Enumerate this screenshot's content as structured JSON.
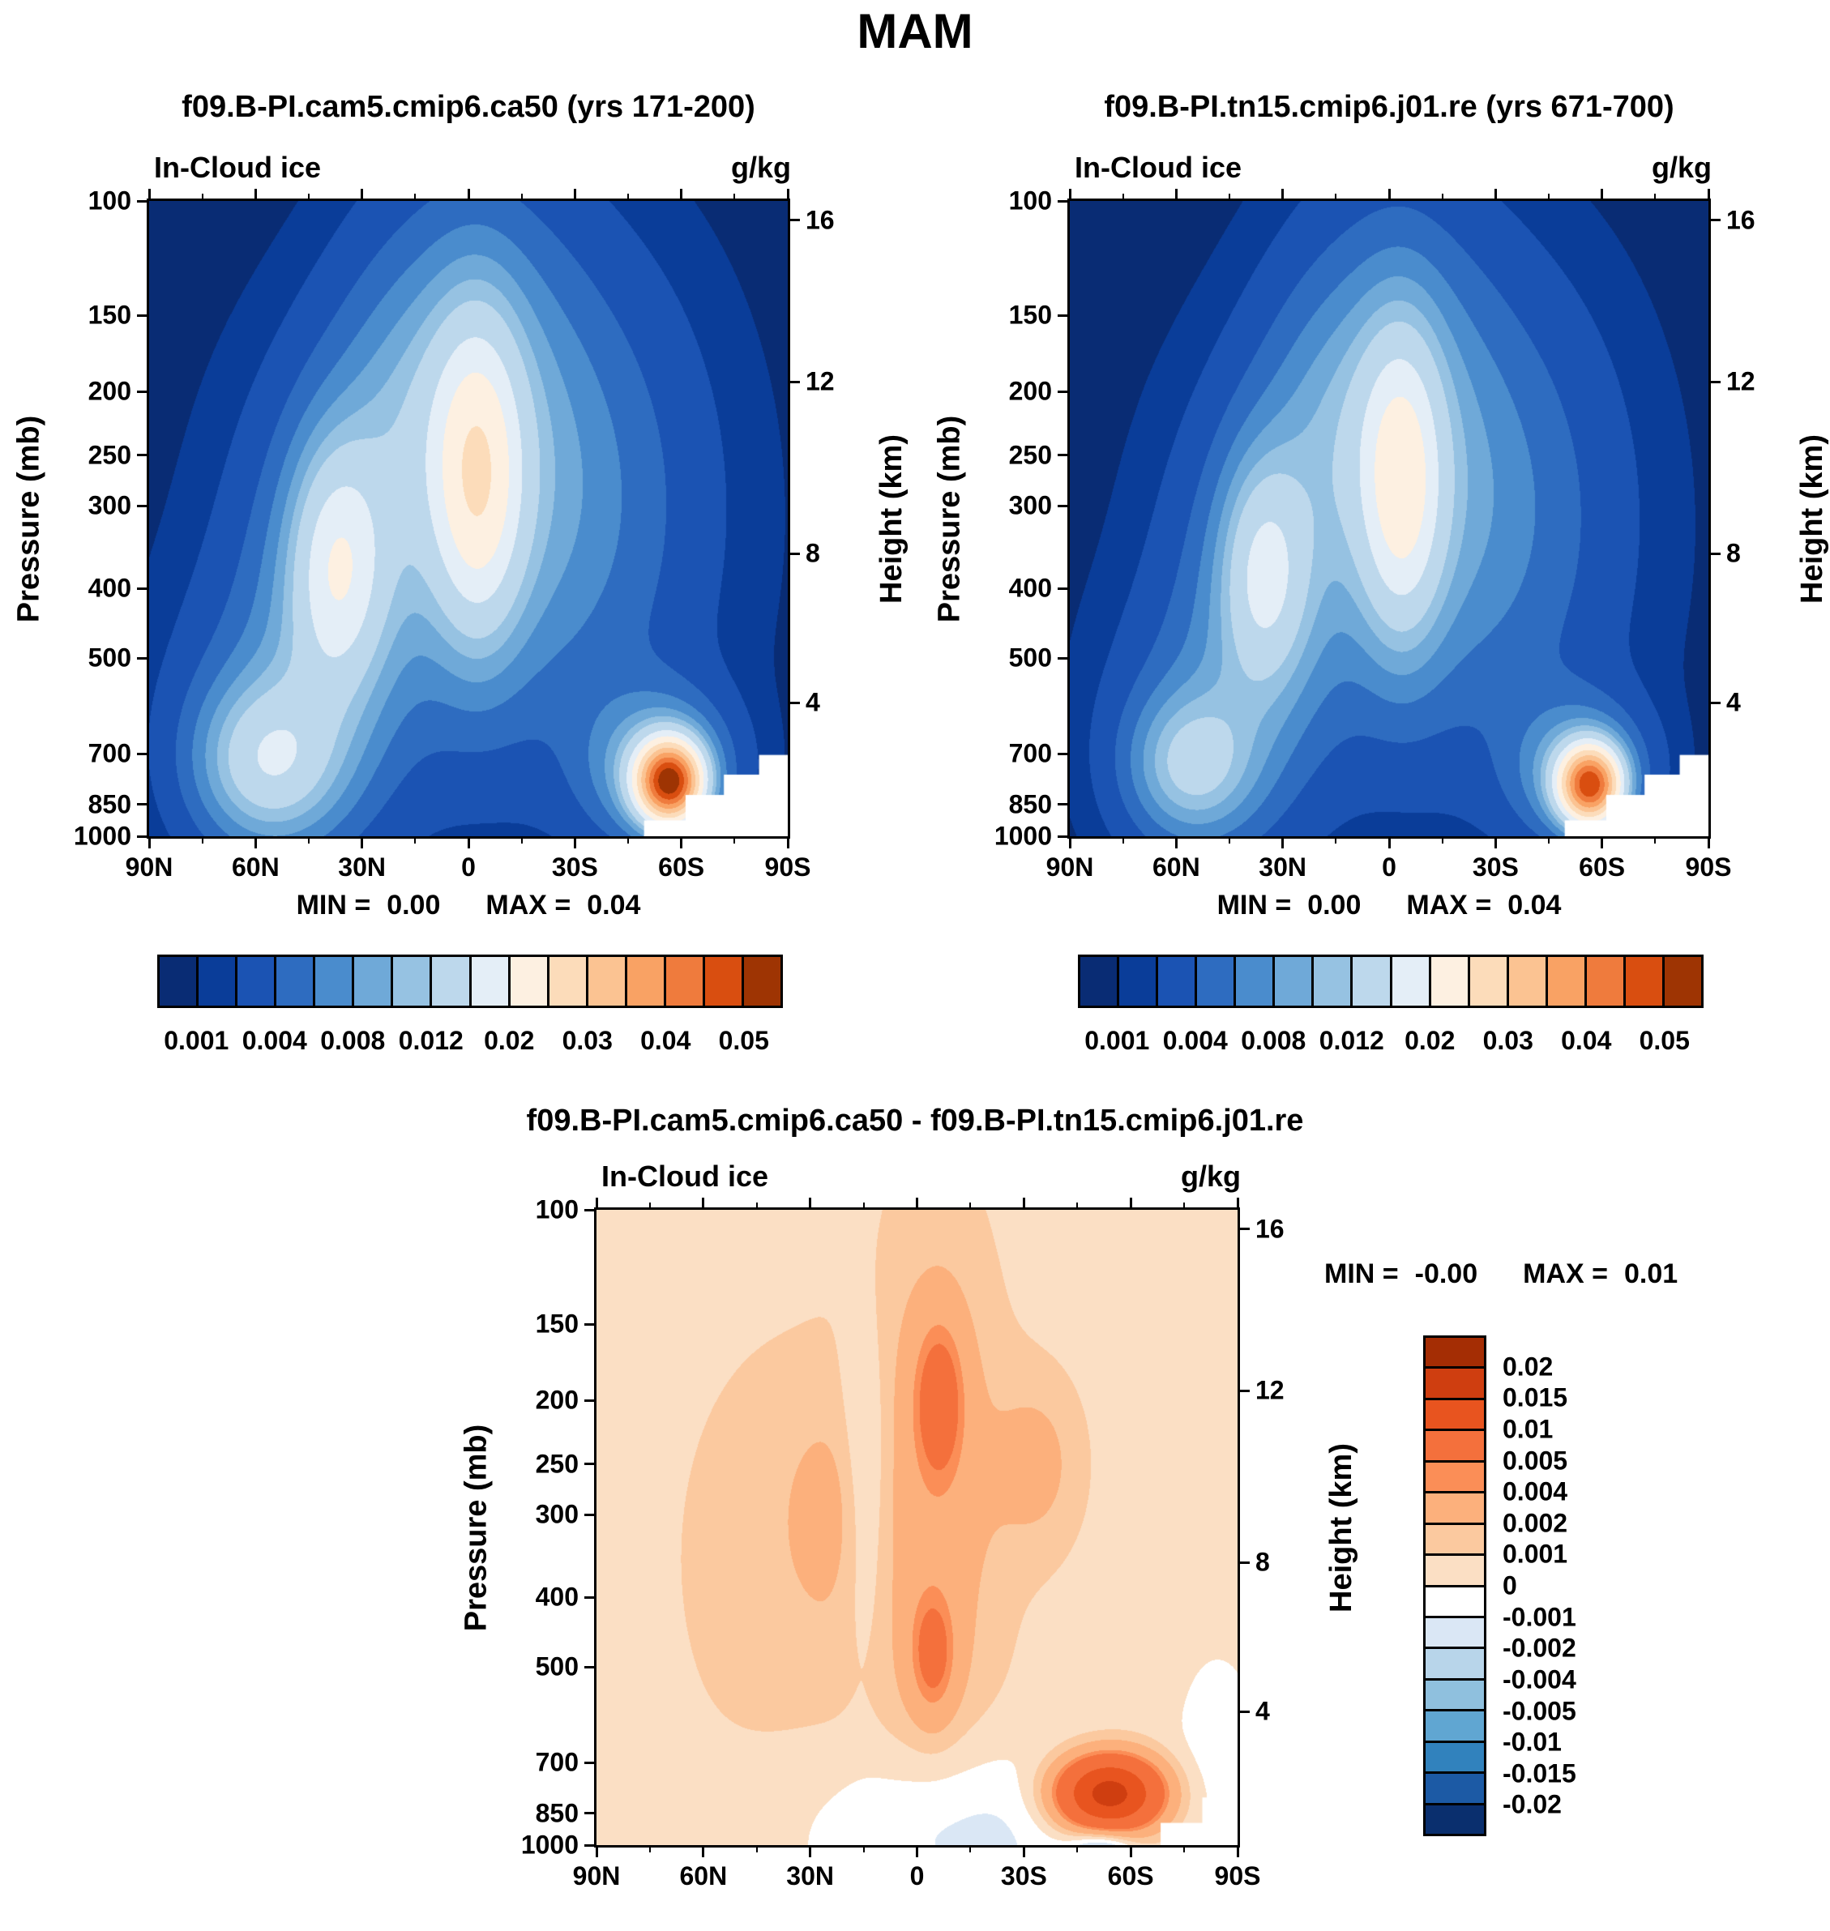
{
  "page_title": "MAM",
  "shared": {
    "pressure_axis_label": "Pressure (mb)",
    "height_axis_label": "Height (km)",
    "x_ticks": [
      [
        "90N",
        0
      ],
      [
        "60N",
        0.1667
      ],
      [
        "30N",
        0.3333
      ],
      [
        "0",
        0.5
      ],
      [
        "30S",
        0.6667
      ],
      [
        "60S",
        0.8333
      ],
      [
        "90S",
        1
      ]
    ],
    "pressure_ticks": [
      [
        "100",
        0
      ],
      [
        "150",
        0.18
      ],
      [
        "200",
        0.3
      ],
      [
        "250",
        0.4
      ],
      [
        "300",
        0.48
      ],
      [
        "400",
        0.61
      ],
      [
        "500",
        0.72
      ],
      [
        "700",
        0.87
      ],
      [
        "850",
        0.95
      ],
      [
        "1000",
        1
      ]
    ],
    "height_ticks": [
      [
        "16",
        0.03
      ],
      [
        "12",
        0.285
      ],
      [
        "8",
        0.555
      ],
      [
        "4",
        0.79
      ]
    ]
  },
  "chart_data": [
    {
      "type": "heatmap",
      "title": "f09.B-PI.cam5.cmip6.ca50 (yrs 171-200)",
      "field_label": "In-Cloud ice",
      "units": "g/kg",
      "min_label": "MIN =",
      "min_value": "0.00",
      "max_label": "MAX =",
      "max_value": "0.04",
      "x_axis": "latitude 90N to 90S",
      "y_axis": "pressure 100-1000 mb, secondary height axis 16/12/8/4 km",
      "levels": [
        0.001,
        0.002,
        0.004,
        0.006,
        0.008,
        0.01,
        0.012,
        0.016,
        0.02,
        0.025,
        0.03,
        0.035,
        0.04,
        0.045,
        0.05
      ],
      "colors": [
        "#092c74",
        "#0a3d99",
        "#1b53b3",
        "#2e6cc0",
        "#4a8ccd",
        "#6fa9d8",
        "#96c2e2",
        "#bdd8ec",
        "#e4eef7",
        "#fdf0e1",
        "#fcdcba",
        "#fbc392",
        "#f9a264",
        "#ef7b3d",
        "#d94e10",
        "#9e3403"
      ],
      "colorbar_labels": [
        [
          "0.001",
          1
        ],
        [
          "0.004",
          3
        ],
        [
          "0.008",
          5
        ],
        [
          "0.012",
          7
        ],
        [
          "0.02",
          9
        ],
        [
          "0.03",
          11
        ],
        [
          "0.04",
          13
        ],
        [
          "0.05",
          15
        ]
      ],
      "background": 0.0004,
      "features": [
        {
          "x": 0.5,
          "y": 0.36,
          "a": 0.0075,
          "sx": 0.115,
          "sy": 0.26
        },
        {
          "x": 0.515,
          "y": 0.44,
          "a": 0.014,
          "sx": 0.048,
          "sy": 0.17
        },
        {
          "x": 0.29,
          "y": 0.6,
          "a": 0.006,
          "sx": 0.1,
          "sy": 0.21
        },
        {
          "x": 0.295,
          "y": 0.575,
          "a": 0.011,
          "sx": 0.05,
          "sy": 0.13
        },
        {
          "x": 0.185,
          "y": 0.885,
          "a": 0.01,
          "sx": 0.075,
          "sy": 0.085
        },
        {
          "x": 0.2,
          "y": 0.84,
          "a": 0.0045,
          "sx": 0.115,
          "sy": 0.16
        },
        {
          "x": 0.815,
          "y": 0.915,
          "a": 0.044,
          "sx": 0.034,
          "sy": 0.042
        },
        {
          "x": 0.8,
          "y": 0.895,
          "a": 0.01,
          "sx": 0.075,
          "sy": 0.08
        },
        {
          "x": 0.67,
          "y": 0.48,
          "a": 0.0045,
          "sx": 0.14,
          "sy": 0.27
        },
        {
          "x": 0.4,
          "y": 0.33,
          "a": 0.003,
          "sx": 0.09,
          "sy": 0.16
        },
        {
          "x": 0.5,
          "y": 0.52,
          "a": 0.0012,
          "sx": 0.3,
          "sy": 0.34
        }
      ],
      "mask": [
        {
          "x0": 0.775,
          "x1": 1,
          "y0": 0.975,
          "y1": 1
        },
        {
          "x0": 0.84,
          "x1": 1,
          "y0": 0.935,
          "y1": 1
        },
        {
          "x0": 0.9,
          "x1": 1,
          "y0": 0.903,
          "y1": 1
        },
        {
          "x0": 0.955,
          "x1": 1,
          "y0": 0.872,
          "y1": 1
        }
      ]
    },
    {
      "type": "heatmap",
      "title": "f09.B-PI.tn15.cmip6.j01.re (yrs 671-700)",
      "field_label": "In-Cloud ice",
      "units": "g/kg",
      "min_label": "MIN =",
      "min_value": "0.00",
      "max_label": "MAX =",
      "max_value": "0.04",
      "x_axis": "latitude 90N to 90S",
      "y_axis": "pressure 100-1000 mb, secondary height axis 16/12/8/4 km",
      "levels": [
        0.001,
        0.002,
        0.004,
        0.006,
        0.008,
        0.01,
        0.012,
        0.016,
        0.02,
        0.025,
        0.03,
        0.035,
        0.04,
        0.045,
        0.05
      ],
      "colors": [
        "#092c74",
        "#0a3d99",
        "#1b53b3",
        "#2e6cc0",
        "#4a8ccd",
        "#6fa9d8",
        "#96c2e2",
        "#bdd8ec",
        "#e4eef7",
        "#fdf0e1",
        "#fcdcba",
        "#fbc392",
        "#f9a264",
        "#ef7b3d",
        "#d94e10",
        "#9e3403"
      ],
      "colorbar_labels": [
        [
          "0.001",
          1
        ],
        [
          "0.004",
          3
        ],
        [
          "0.008",
          5
        ],
        [
          "0.012",
          7
        ],
        [
          "0.02",
          9
        ],
        [
          "0.03",
          11
        ],
        [
          "0.04",
          13
        ],
        [
          "0.05",
          15
        ]
      ],
      "background": 0.0004,
      "features": [
        {
          "x": 0.5,
          "y": 0.37,
          "a": 0.007,
          "sx": 0.11,
          "sy": 0.25
        },
        {
          "x": 0.52,
          "y": 0.45,
          "a": 0.013,
          "sx": 0.044,
          "sy": 0.165
        },
        {
          "x": 0.3,
          "y": 0.62,
          "a": 0.0055,
          "sx": 0.095,
          "sy": 0.2
        },
        {
          "x": 0.305,
          "y": 0.585,
          "a": 0.0095,
          "sx": 0.046,
          "sy": 0.12
        },
        {
          "x": 0.19,
          "y": 0.89,
          "a": 0.0085,
          "sx": 0.065,
          "sy": 0.075
        },
        {
          "x": 0.205,
          "y": 0.85,
          "a": 0.004,
          "sx": 0.105,
          "sy": 0.15
        },
        {
          "x": 0.815,
          "y": 0.92,
          "a": 0.04,
          "sx": 0.032,
          "sy": 0.04
        },
        {
          "x": 0.8,
          "y": 0.9,
          "a": 0.009,
          "sx": 0.07,
          "sy": 0.075
        },
        {
          "x": 0.67,
          "y": 0.5,
          "a": 0.0045,
          "sx": 0.135,
          "sy": 0.26
        },
        {
          "x": 0.405,
          "y": 0.34,
          "a": 0.0028,
          "sx": 0.085,
          "sy": 0.15
        },
        {
          "x": 0.5,
          "y": 0.53,
          "a": 0.0011,
          "sx": 0.29,
          "sy": 0.33
        }
      ],
      "mask": [
        {
          "x0": 0.775,
          "x1": 1,
          "y0": 0.975,
          "y1": 1
        },
        {
          "x0": 0.84,
          "x1": 1,
          "y0": 0.935,
          "y1": 1
        },
        {
          "x0": 0.9,
          "x1": 1,
          "y0": 0.903,
          "y1": 1
        },
        {
          "x0": 0.955,
          "x1": 1,
          "y0": 0.872,
          "y1": 1
        }
      ]
    },
    {
      "type": "heatmap",
      "title": "f09.B-PI.cam5.cmip6.ca50 - f09.B-PI.tn15.cmip6.j01.re",
      "field_label": "In-Cloud ice",
      "units": "g/kg",
      "min_label": "MIN =",
      "min_value": "-0.00",
      "max_label": "MAX =",
      "max_value": "0.01",
      "x_axis": "latitude 90N to 90S",
      "y_axis": "pressure 100-1000 mb, secondary height axis 16/12/8/4 km",
      "levels": [
        -0.02,
        -0.015,
        -0.01,
        -0.005,
        -0.004,
        -0.002,
        -0.001,
        0,
        0.001,
        0.002,
        0.004,
        0.005,
        0.01,
        0.015,
        0.02
      ],
      "colors": [
        "#0a2f6e",
        "#1c5aa5",
        "#3182bd",
        "#60a6d2",
        "#8fc0de",
        "#b8d5ea",
        "#dae7f5",
        "#ffffff",
        "#fbdfc4",
        "#fbc99f",
        "#fcb07c",
        "#fb8e57",
        "#f4703c",
        "#e8541f",
        "#cf3e10",
        "#a42d04"
      ],
      "colorbar_labels": [
        [
          "0.02",
          1
        ],
        [
          "0.015",
          2
        ],
        [
          "0.01",
          3
        ],
        [
          "0.005",
          4
        ],
        [
          "0.004",
          5
        ],
        [
          "0.002",
          6
        ],
        [
          "0.001",
          7
        ],
        [
          "0",
          8
        ],
        [
          "-0.001",
          9
        ],
        [
          "-0.002",
          10
        ],
        [
          "-0.004",
          11
        ],
        [
          "-0.005",
          12
        ],
        [
          "-0.01",
          13
        ],
        [
          "-0.015",
          14
        ],
        [
          "-0.02",
          15
        ]
      ],
      "background": 0.0005,
      "features": [
        {
          "x": 0.53,
          "y": 0.45,
          "a": 0.002,
          "sx": 0.075,
          "sy": 0.33
        },
        {
          "x": 0.535,
          "y": 0.3,
          "a": 0.0045,
          "sx": 0.028,
          "sy": 0.09
        },
        {
          "x": 0.525,
          "y": 0.7,
          "a": 0.004,
          "sx": 0.025,
          "sy": 0.07
        },
        {
          "x": 0.32,
          "y": 0.55,
          "a": 0.001,
          "sx": 0.16,
          "sy": 0.3
        },
        {
          "x": 0.36,
          "y": 0.48,
          "a": 0.0013,
          "sx": 0.045,
          "sy": 0.1
        },
        {
          "x": 0.69,
          "y": 0.4,
          "a": 0.0018,
          "sx": 0.05,
          "sy": 0.1
        },
        {
          "x": 0.8,
          "y": 0.92,
          "a": 0.017,
          "sx": 0.055,
          "sy": 0.04
        },
        {
          "x": 0.55,
          "y": 0.98,
          "a": -0.0022,
          "sx": 0.16,
          "sy": 0.1
        },
        {
          "x": 0.79,
          "y": 1.01,
          "a": -0.004,
          "sx": 0.035,
          "sy": 0.025
        },
        {
          "x": 0.42,
          "y": 0.45,
          "a": -0.002,
          "sx": 0.028,
          "sy": 0.18
        },
        {
          "x": 0.97,
          "y": 0.85,
          "a": -0.001,
          "sx": 0.05,
          "sy": 0.12
        }
      ],
      "mask": [
        {
          "x0": 0.88,
          "x1": 1,
          "y0": 0.965,
          "y1": 1
        },
        {
          "x0": 0.945,
          "x1": 1,
          "y0": 0.925,
          "y1": 1
        }
      ]
    }
  ]
}
